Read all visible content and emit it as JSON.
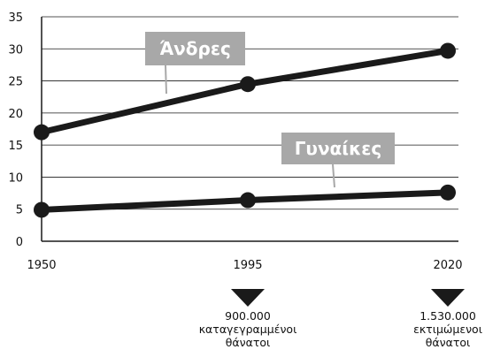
{
  "chart_data": {
    "type": "line",
    "title": "",
    "xlabel": "",
    "ylabel": "",
    "x": [
      1950,
      1995,
      2020
    ],
    "x_tick_labels": [
      "1950",
      "1995",
      "2020"
    ],
    "y_ticks": [
      0,
      5,
      10,
      15,
      20,
      25,
      30,
      35
    ],
    "ylim": [
      0,
      35
    ],
    "grid": true,
    "series": [
      {
        "name": "Άνδρες",
        "values": [
          17,
          24.5,
          29.7
        ]
      },
      {
        "name": "Γυναίκες",
        "values": [
          4.9,
          6.4,
          7.6
        ]
      }
    ],
    "annotations": [
      {
        "x": 1995,
        "lines": [
          "900.000",
          "καταγεγραμμένοι",
          "θάνατοι"
        ]
      },
      {
        "x": 2020,
        "lines": [
          "1.530.000",
          "εκτιμώμενοι",
          "θάνατοι"
        ]
      }
    ],
    "colors": {
      "line": "#1a1a1a",
      "label_box": "#a8a8a8",
      "label_text": "#ffffff",
      "grid": "#1a1a1a"
    }
  }
}
